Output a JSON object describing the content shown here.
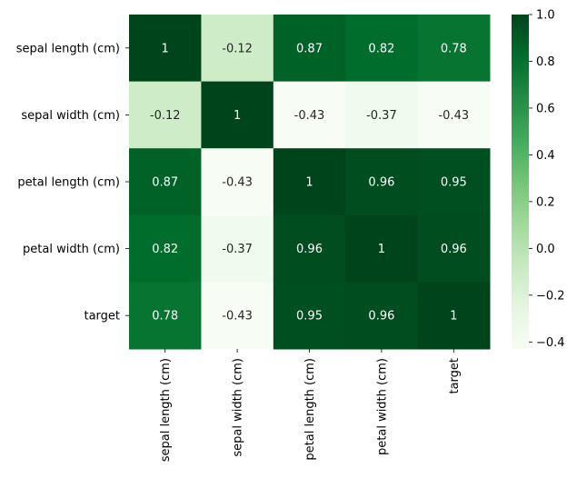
{
  "chart_data": {
    "type": "heatmap",
    "title": "",
    "xlabel": "",
    "ylabel": "",
    "rows": [
      "sepal length (cm)",
      "sepal width (cm)",
      "petal length (cm)",
      "petal width (cm)",
      "target"
    ],
    "columns": [
      "sepal length (cm)",
      "sepal width (cm)",
      "petal length (cm)",
      "petal width (cm)",
      "target"
    ],
    "values": [
      [
        1,
        -0.12,
        0.87,
        0.82,
        0.78
      ],
      [
        -0.12,
        1,
        -0.43,
        -0.37,
        -0.43
      ],
      [
        0.87,
        -0.43,
        1,
        0.96,
        0.95
      ],
      [
        0.82,
        -0.37,
        0.96,
        1,
        0.96
      ],
      [
        0.78,
        -0.43,
        0.95,
        0.96,
        1
      ]
    ],
    "annotations": [
      [
        "1",
        "-0.12",
        "0.87",
        "0.82",
        "0.78"
      ],
      [
        "-0.12",
        "1",
        "-0.43",
        "-0.37",
        "-0.43"
      ],
      [
        "0.87",
        "-0.43",
        "1",
        "0.96",
        "0.95"
      ],
      [
        "0.82",
        "-0.37",
        "0.96",
        "1",
        "0.96"
      ],
      [
        "0.78",
        "-0.43",
        "0.95",
        "0.96",
        "1"
      ]
    ],
    "colormap": "Greens",
    "color_range": [
      -0.43,
      1
    ],
    "colorbar": {
      "ticks": [
        -0.4,
        -0.2,
        0.0,
        0.2,
        0.4,
        0.6,
        0.8,
        1.0
      ],
      "tick_labels": [
        "−0.4",
        "−0.2",
        "0.0",
        "0.2",
        "0.4",
        "0.6",
        "0.8",
        "1.0"
      ]
    },
    "grid": false,
    "legend": "colorbar-right"
  }
}
